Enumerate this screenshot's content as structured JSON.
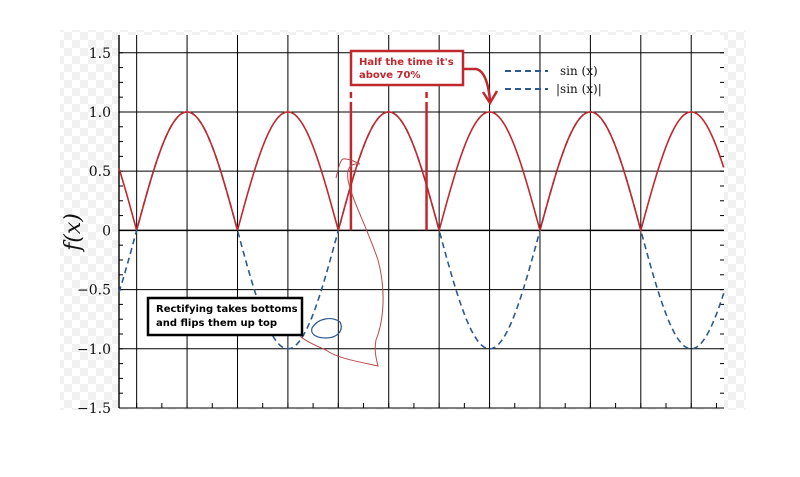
{
  "chart_data": {
    "type": "line",
    "title": "",
    "xlabel": "",
    "ylabel": "f(x)",
    "xlim": [
      -0.55,
      18.3
    ],
    "ylim": [
      -1.5,
      1.65
    ],
    "yticks": [
      -1.5,
      -1.0,
      -0.5,
      0,
      0.5,
      1.0,
      1.5
    ],
    "ytick_labels": [
      "−1.5",
      "−1.0",
      "−0.5",
      "0",
      "0.5",
      "1.0",
      "1.5"
    ],
    "grid": true,
    "legend": "top-right",
    "series": [
      {
        "name": "sin (x)",
        "style": "dashed",
        "color": "#2d5a8e",
        "x": [
          -0.55,
          0,
          1.571,
          3.142,
          4.712,
          6.283,
          7.854,
          9.425,
          10.996,
          12.566,
          14.137,
          15.708,
          17.279,
          18.3
        ],
        "values": [
          -0.52,
          0,
          1.0,
          0,
          -1.0,
          0,
          1.0,
          0,
          -1.0,
          0,
          1.0,
          0,
          -1.0,
          -0.48
        ]
      },
      {
        "name": "|sin (x)|",
        "style": "solid",
        "color": "#c0282d",
        "x": [
          -0.55,
          0,
          1.571,
          3.142,
          4.712,
          6.283,
          7.854,
          9.425,
          10.996,
          12.566,
          14.137,
          15.708,
          17.279,
          18.3
        ],
        "values": [
          0.52,
          0,
          1.0,
          0,
          1.0,
          0,
          1.0,
          0,
          1.0,
          0,
          1.0,
          0,
          1.0,
          0.48
        ]
      }
    ],
    "annotations": [
      {
        "text_lines": [
          "Half the time it's",
          "above 70%"
        ],
        "color": "#c0282d",
        "marks_x": [
          6.676,
          9.032
        ],
        "mark_height": 1.0
      },
      {
        "text_lines": [
          "Rectifying takes bottoms",
          "and flips them up top"
        ],
        "color": "#000000"
      }
    ]
  },
  "colors": {
    "grid": "#000000",
    "sin": "#2d5a8e",
    "abs_sin": "#c0282d",
    "scribble": "#b84a4a",
    "scribble_blue": "#2d5a8e"
  }
}
